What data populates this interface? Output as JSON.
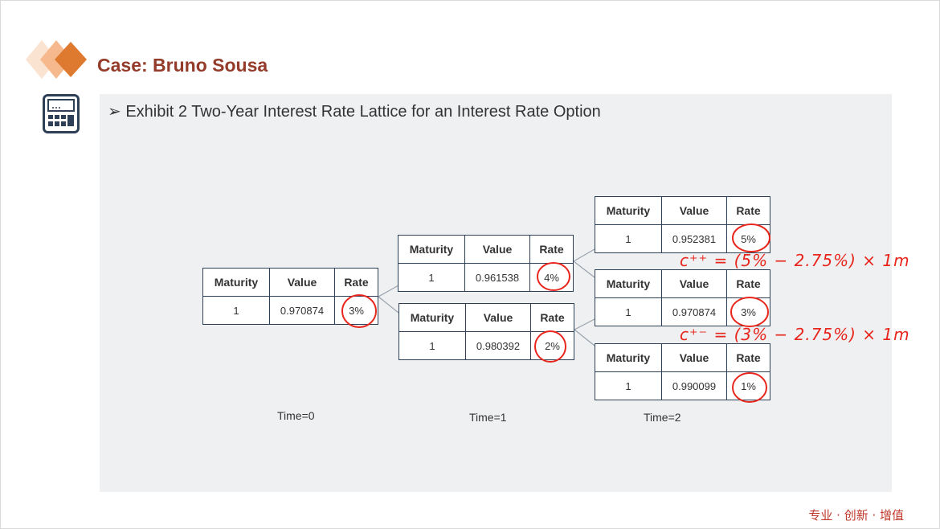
{
  "slide": {
    "title": "Case: Bruno Sousa",
    "exhibit_title": "Exhibit 2 Two-Year Interest Rate Lattice for an Interest Rate Option",
    "footer_tagline": "专业 · 创新 · 增值"
  },
  "lattice": {
    "headers": {
      "maturity": "Maturity",
      "value": "Value",
      "rate": "Rate"
    },
    "nodes": [
      {
        "maturity": "1",
        "value": "0.970874",
        "rate": "3%"
      },
      {
        "maturity": "1",
        "value": "0.961538",
        "rate": "4%"
      },
      {
        "maturity": "1",
        "value": "0.980392",
        "rate": "2%"
      },
      {
        "maturity": "1",
        "value": "0.952381",
        "rate": "5%"
      },
      {
        "maturity": "1",
        "value": "0.970874",
        "rate": "3%"
      },
      {
        "maturity": "1",
        "value": "0.990099",
        "rate": "1%"
      }
    ],
    "time_labels": [
      "Time=0",
      "Time=1",
      "Time=2"
    ]
  },
  "annotations": {
    "formula_upper": "c⁺⁺ = (5% − 2.75%) × 1m",
    "formula_middle": "c⁺⁻ = (3% − 2.75%) × 1m",
    "ink_color": "#e8261c"
  },
  "colors": {
    "title": "#943b2a",
    "panel": "#eef0f2",
    "table_border": "#2e4057",
    "logo_dark": "#dd7a2f",
    "logo_light": "#f9d3b4"
  }
}
